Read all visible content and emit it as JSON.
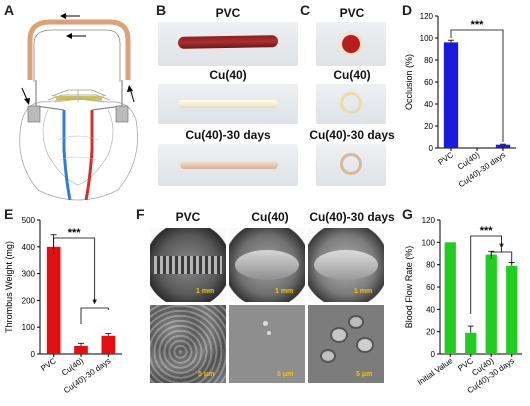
{
  "panels": {
    "A": "A",
    "B": "B",
    "C": "C",
    "D": "D",
    "E": "E",
    "F": "F",
    "G": "G"
  },
  "panel_b": {
    "labels": [
      "PVC",
      "Cu(40)",
      "Cu(40)-30 days"
    ]
  },
  "panel_c": {
    "labels": [
      "PVC",
      "Cu(40)",
      "Cu(40)-30 days"
    ]
  },
  "panel_f": {
    "columns": [
      "PVC",
      "Cu(40)",
      "Cu(40)-30 days"
    ],
    "scale_top": "1 mm",
    "scale_bottom": "5 μm"
  },
  "chart_data": [
    {
      "panel": "D",
      "type": "bar",
      "categories": [
        "PVC",
        "Cu(40)",
        "Cu(40)-30 days"
      ],
      "values": [
        96,
        0,
        3
      ],
      "errors": [
        2,
        0,
        0.5
      ],
      "ylabel": "Occlusion (%)",
      "ylim": [
        0,
        120
      ],
      "yticks": [
        0,
        20,
        40,
        60,
        80,
        100,
        120
      ],
      "color": "#1a1adb",
      "significance": [
        {
          "from": 0,
          "to": 2,
          "label": "***"
        }
      ]
    },
    {
      "panel": "E",
      "type": "bar",
      "categories": [
        "PVC",
        "Cu(40)",
        "Cu(40)-30 days"
      ],
      "values": [
        400,
        30,
        68
      ],
      "errors": [
        45,
        10,
        8
      ],
      "ylabel": "Thrombus Weight (mg)",
      "ylim": [
        0,
        500
      ],
      "yticks": [
        0,
        100,
        200,
        300,
        400,
        500
      ],
      "color": "#e01010",
      "significance": [
        {
          "from": 0,
          "to": 1.5,
          "label": "***"
        },
        {
          "from": 1,
          "to": 2,
          "label": "*"
        }
      ]
    },
    {
      "panel": "G",
      "type": "bar",
      "categories": [
        "Initial Value",
        "PVC",
        "Cu(40)",
        "Cu(40)-30 days"
      ],
      "values": [
        100,
        19,
        89,
        79
      ],
      "errors": [
        0,
        6,
        3,
        3
      ],
      "ylabel": "Blood Flow Rate (%)",
      "ylim": [
        0,
        120
      ],
      "yticks": [
        0,
        20,
        40,
        60,
        80,
        100,
        120
      ],
      "color": "#22cc22",
      "significance": [
        {
          "from": 1,
          "to": 2.5,
          "label": "***"
        },
        {
          "from": 2,
          "to": 3,
          "label": "*"
        }
      ]
    }
  ]
}
